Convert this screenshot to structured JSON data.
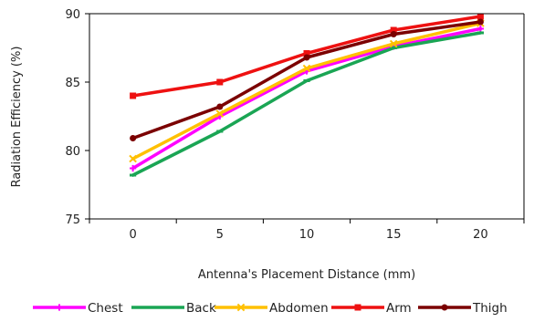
{
  "chart_data": {
    "type": "line",
    "title": "",
    "xlabel": "Antenna's Placement Distance (mm)",
    "ylabel": "Radiation Efficiency (%)",
    "x": [
      0,
      5,
      10,
      15,
      20
    ],
    "x_tick_labels": [
      "0",
      "5",
      "10",
      "15",
      "20"
    ],
    "y_tick_labels": [
      "75",
      "80",
      "85",
      "90"
    ],
    "ylim": [
      75,
      90
    ],
    "grid": false,
    "legend_position": "bottom",
    "series": [
      {
        "name": "Chest",
        "color": "#ff00ff",
        "marker": "plus",
        "values": [
          78.7,
          82.5,
          85.8,
          87.6,
          88.9
        ]
      },
      {
        "name": "Back",
        "color": "#1aa554",
        "marker": "dash",
        "values": [
          78.2,
          81.4,
          85.1,
          87.5,
          88.6
        ]
      },
      {
        "name": "Abdomen",
        "color": "#ffc000",
        "marker": "x",
        "values": [
          79.4,
          82.7,
          86.0,
          87.8,
          89.3
        ]
      },
      {
        "name": "Arm",
        "color": "#ee1111",
        "marker": "square",
        "values": [
          84.0,
          85.0,
          87.1,
          88.8,
          89.8
        ]
      },
      {
        "name": "Thigh",
        "color": "#7b0000",
        "marker": "circle",
        "values": [
          80.9,
          83.2,
          86.8,
          88.5,
          89.4
        ]
      }
    ]
  }
}
